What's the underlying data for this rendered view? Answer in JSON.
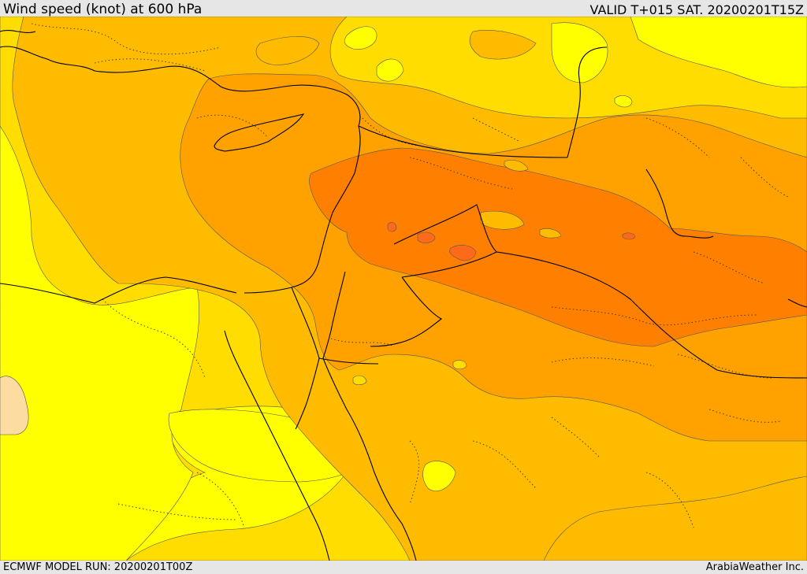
{
  "header": {
    "title": "Wind speed (knot) at 600 hPa",
    "valid": "VALID T+015 SAT. 20200201T15Z"
  },
  "footer": {
    "model_run": "ECMWF MODEL RUN: 20200201T00Z",
    "provider": "ArabiaWeather Inc."
  },
  "colors": {
    "lightest": "#ffff00",
    "light": "#ffdd00",
    "medium": "#ffbb00",
    "strong": "#ffa200",
    "stronger": "#ff8000",
    "strongest": "#ff6a1a",
    "weak_patch": "#fcdca0",
    "background": "#e6e6e6"
  }
}
